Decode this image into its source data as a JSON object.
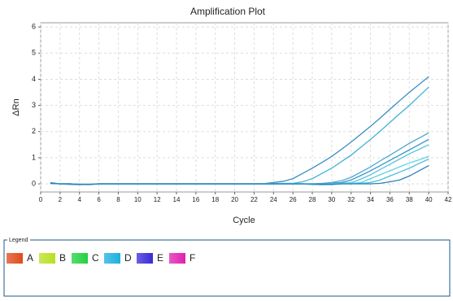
{
  "chart_data": {
    "type": "line",
    "title": "Amplification Plot",
    "x_label": "Cycle",
    "y_label": "ΔRn",
    "x": [
      1,
      2,
      3,
      4,
      5,
      6,
      8,
      12,
      16,
      20,
      22,
      23,
      24,
      25,
      26,
      27,
      28,
      29,
      30,
      31,
      32,
      33,
      34,
      35,
      36,
      37,
      38,
      39,
      40
    ],
    "series": [
      {
        "color": "#3a8cc4",
        "values": [
          0.05,
          0,
          -0.02,
          -0.03,
          -0.02,
          0,
          0,
          0,
          0,
          0,
          0,
          0.01,
          0.05,
          0.1,
          0.2,
          0.4,
          0.6,
          0.82,
          1.05,
          1.32,
          1.6,
          1.9,
          2.2,
          2.52,
          2.85,
          3.18,
          3.5,
          3.8,
          4.1
        ]
      },
      {
        "color": "#3fb4d6",
        "values": [
          0.02,
          0,
          0,
          -0.02,
          -0.03,
          0,
          0,
          0,
          0,
          0,
          0,
          0,
          0.01,
          0.02,
          0.02,
          0.08,
          0.2,
          0.4,
          0.6,
          0.85,
          1.1,
          1.4,
          1.7,
          2.02,
          2.35,
          2.68,
          3.0,
          3.35,
          3.7
        ]
      },
      {
        "color": "#4aa6d0",
        "values": [
          0.03,
          0,
          0,
          -0.02,
          -0.01,
          0,
          0,
          0,
          0,
          0,
          0,
          0,
          0,
          0,
          0,
          0,
          0,
          0.02,
          0.05,
          0.12,
          0.25,
          0.45,
          0.65,
          0.88,
          1.1,
          1.32,
          1.55,
          1.75,
          1.95
        ]
      },
      {
        "color": "#3b95c8",
        "values": [
          0.02,
          0,
          0,
          -0.01,
          -0.02,
          0,
          0,
          0,
          0,
          0,
          0,
          0,
          0,
          0,
          0,
          0,
          -0.02,
          0,
          0.02,
          0.05,
          0.15,
          0.32,
          0.5,
          0.7,
          0.9,
          1.1,
          1.3,
          1.5,
          1.7
        ]
      },
      {
        "color": "#56c4dc",
        "values": [
          0.01,
          0,
          0,
          -0.02,
          -0.02,
          0,
          0,
          0,
          0,
          0,
          0,
          0,
          0,
          0,
          0,
          0,
          -0.02,
          -0.02,
          0,
          0.02,
          0.05,
          0.18,
          0.35,
          0.55,
          0.75,
          0.95,
          1.15,
          1.32,
          1.5
        ]
      },
      {
        "color": "#60d0e0",
        "values": [
          0.02,
          0,
          0,
          -0.01,
          -0.01,
          0,
          0,
          0,
          0,
          0,
          0,
          0,
          0,
          0,
          0,
          0,
          -0.03,
          -0.03,
          0,
          0,
          0.02,
          0.05,
          0.2,
          0.35,
          0.5,
          0.65,
          0.8,
          0.92,
          1.05
        ]
      },
      {
        "color": "#48c0da",
        "values": [
          0.01,
          0,
          0,
          -0.01,
          -0.02,
          0,
          0,
          0,
          0,
          0,
          0,
          0,
          0,
          0,
          0,
          0,
          -0.02,
          -0.03,
          -0.02,
          0,
          0,
          0.02,
          0.05,
          0.15,
          0.3,
          0.45,
          0.6,
          0.78,
          0.95
        ]
      },
      {
        "color": "#2f7fb8",
        "values": [
          0.02,
          0,
          0,
          -0.02,
          -0.02,
          0,
          0,
          0,
          0,
          0,
          0,
          0,
          0,
          0,
          0,
          0,
          0,
          -0.02,
          -0.02,
          0,
          0,
          0,
          0,
          0.02,
          0.08,
          0.15,
          0.3,
          0.5,
          0.7
        ]
      }
    ],
    "xlim": [
      0,
      42
    ],
    "xticks": [
      0,
      2,
      4,
      6,
      8,
      10,
      12,
      14,
      16,
      18,
      20,
      22,
      24,
      26,
      28,
      30,
      32,
      34,
      36,
      38,
      40,
      42
    ],
    "ylim": [
      -0.31,
      6.16
    ],
    "yticks": [
      0,
      1,
      2,
      3,
      4,
      5,
      6
    ],
    "grid": true,
    "legend": {
      "title": "Legend",
      "items": [
        {
          "label": "A",
          "color": "#e04a1c"
        },
        {
          "label": "B",
          "color": "#b8e020"
        },
        {
          "label": "C",
          "color": "#22d040"
        },
        {
          "label": "D",
          "color": "#1ab0e0"
        },
        {
          "label": "E",
          "color": "#3a2ad8"
        },
        {
          "label": "F",
          "color": "#e020b0"
        }
      ]
    }
  }
}
